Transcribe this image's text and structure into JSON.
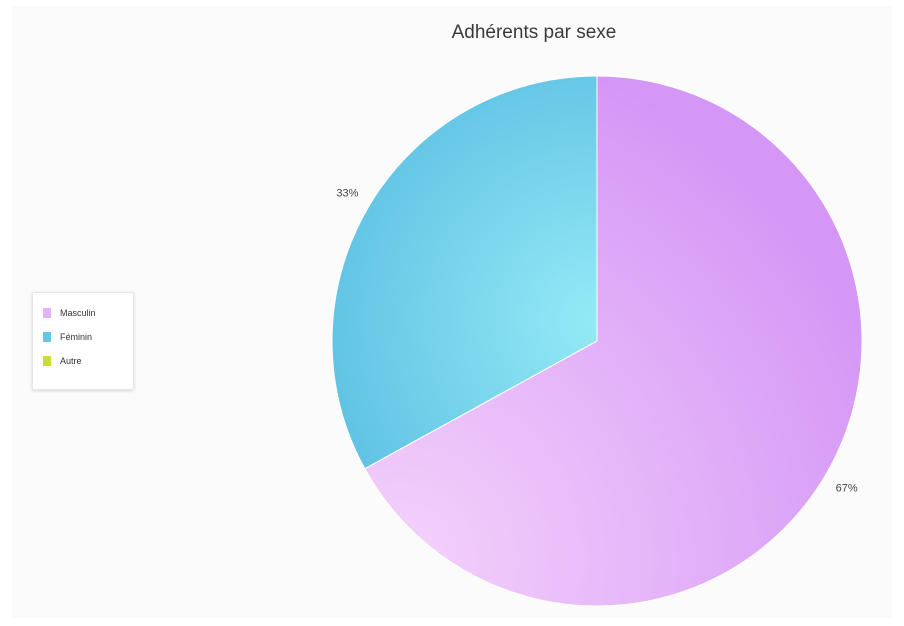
{
  "chart_data": {
    "type": "pie",
    "title": "Adhérents par sexe",
    "slices": [
      {
        "label": "Masculin",
        "value": 67,
        "value_label": "67%",
        "color": "#d99df6"
      },
      {
        "label": "Féminin",
        "value": 33,
        "value_label": "33%",
        "color": "#6ecbe6"
      },
      {
        "label": "Autre",
        "value": 0,
        "value_label": "",
        "color": "#c8dc3a"
      }
    ],
    "legend_position": "left"
  }
}
